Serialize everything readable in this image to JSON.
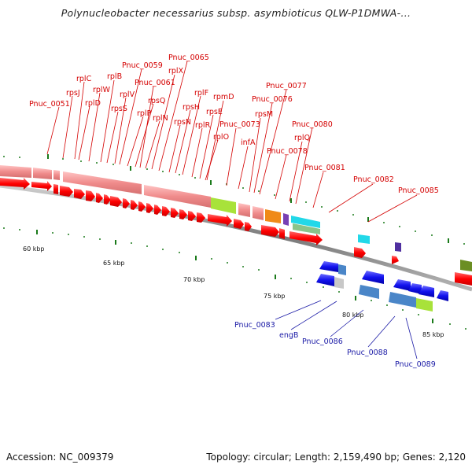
{
  "title": "Polynucleobacter necessarius subsp. asymbioticus QLW-P1DMWA-...",
  "footer": {
    "accession": "Accession: NC_009379",
    "topology": "Topology: circular; Length: 2,159,490 bp; Genes: 2,120"
  },
  "colors": {
    "forward_gene": "#ff0000",
    "reverse_gene": "#0000ee",
    "label_forward": "#d40000",
    "label_reverse": "#1a1aa6",
    "backbone": "#8a8a8a",
    "tick": "#1a7a1a"
  },
  "scale_labels": [
    "60 kbp",
    "65 kbp",
    "70 kbp",
    "75 kbp",
    "80 kbp",
    "85 kbp"
  ],
  "forward_labels": [
    "Pnuc_0051",
    "rpsJ",
    "rplC",
    "rplD",
    "rplW",
    "rplB",
    "rpsS",
    "rplV",
    "Pnuc_0059",
    "rpsQ",
    "rplP",
    "Pnuc_0061",
    "rplN",
    "rplX",
    "Pnuc_0065",
    "rpsN",
    "rpsH",
    "rplF",
    "rplR",
    "rpsE",
    "rpmD",
    "rplO",
    "Pnuc_0073",
    "infA",
    "rpsM",
    "Pnuc_0076",
    "Pnuc_0077",
    "Pnuc_0078",
    "rplQ",
    "Pnuc_0080",
    "Pnuc_0081",
    "Pnuc_0082",
    "Pnuc_0085"
  ],
  "reverse_labels": [
    "Pnuc_0083",
    "engB",
    "Pnuc_0086",
    "Pnuc_0088",
    "Pnuc_0089"
  ]
}
